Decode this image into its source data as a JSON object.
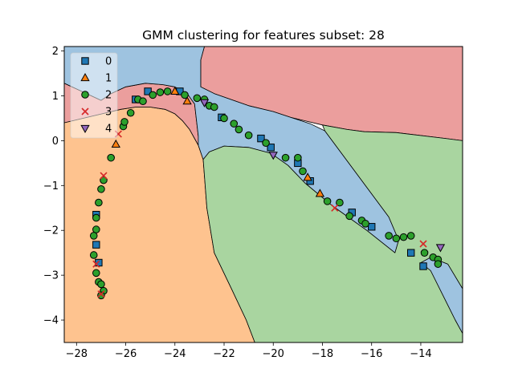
{
  "chart_data": {
    "type": "scatter",
    "title": "GMM clustering for features subset: 28",
    "xlabel": "",
    "ylabel": "",
    "xlim": [
      -28.5,
      -12.3
    ],
    "ylim": [
      -4.5,
      2.1
    ],
    "xticks": [
      -28,
      -26,
      -24,
      -22,
      -20,
      -18,
      -16,
      -14
    ],
    "yticks": [
      -4,
      -3,
      -2,
      -1,
      0,
      1,
      2
    ],
    "xtick_labels": [
      "−28",
      "−26",
      "−24",
      "−22",
      "−20",
      "−18",
      "−16",
      "−14"
    ],
    "ytick_labels": [
      "−4",
      "−3",
      "−2",
      "−1",
      "0",
      "1",
      "2"
    ],
    "grid": false,
    "legend_position": "top-left",
    "colors": {
      "0": "#1f77b4",
      "1": "#ff7f0e",
      "2": "#2ca02c",
      "3": "#d62728",
      "4": "#9467bd"
    },
    "region_colors": {
      "blue": "#9ec3e0",
      "orange": "#fec38f",
      "green": "#a9d5a0",
      "red": "#eb9e9d"
    },
    "series": [
      {
        "name": "0",
        "marker": "square",
        "points": [
          [
            -27.2,
            -1.65
          ],
          [
            -27.2,
            -2.32
          ],
          [
            -27.1,
            -2.72
          ],
          [
            -25.6,
            0.92
          ],
          [
            -25.1,
            1.1
          ],
          [
            -23.8,
            1.1
          ],
          [
            -22.1,
            0.52
          ],
          [
            -20.5,
            0.05
          ],
          [
            -20.1,
            -0.15
          ],
          [
            -19.0,
            -0.5
          ],
          [
            -18.5,
            -0.9
          ],
          [
            -16.8,
            -1.6
          ],
          [
            -16.0,
            -1.92
          ],
          [
            -14.4,
            -2.5
          ],
          [
            -13.9,
            -2.8
          ]
        ]
      },
      {
        "name": "1",
        "marker": "triangle-up",
        "points": [
          [
            -26.4,
            -0.08
          ],
          [
            -24.0,
            1.1
          ],
          [
            -23.5,
            0.88
          ],
          [
            -18.6,
            -0.82
          ],
          [
            -18.1,
            -1.18
          ]
        ]
      },
      {
        "name": "2",
        "marker": "circle",
        "points": [
          [
            -27.2,
            -1.72
          ],
          [
            -27.2,
            -1.98
          ],
          [
            -27.3,
            -2.12
          ],
          [
            -27.3,
            -2.55
          ],
          [
            -27.2,
            -2.95
          ],
          [
            -27.1,
            -3.15
          ],
          [
            -27.0,
            -3.2
          ],
          [
            -26.9,
            -3.35
          ],
          [
            -27.0,
            -3.45
          ],
          [
            -27.1,
            -1.38
          ],
          [
            -27.0,
            -1.08
          ],
          [
            -26.9,
            -0.88
          ],
          [
            -26.6,
            -0.38
          ],
          [
            -26.1,
            0.32
          ],
          [
            -26.05,
            0.42
          ],
          [
            -25.8,
            0.62
          ],
          [
            -25.5,
            0.92
          ],
          [
            -25.3,
            0.88
          ],
          [
            -24.9,
            1.02
          ],
          [
            -24.6,
            1.08
          ],
          [
            -24.3,
            1.1
          ],
          [
            -23.6,
            1.02
          ],
          [
            -23.1,
            0.95
          ],
          [
            -22.8,
            0.92
          ],
          [
            -22.6,
            0.78
          ],
          [
            -22.4,
            0.75
          ],
          [
            -22.0,
            0.5
          ],
          [
            -21.6,
            0.38
          ],
          [
            -21.4,
            0.25
          ],
          [
            -21.0,
            0.12
          ],
          [
            -20.3,
            -0.05
          ],
          [
            -19.5,
            -0.38
          ],
          [
            -19.0,
            -0.38
          ],
          [
            -18.8,
            -0.68
          ],
          [
            -17.8,
            -1.35
          ],
          [
            -17.3,
            -1.38
          ],
          [
            -16.9,
            -1.68
          ],
          [
            -16.4,
            -1.78
          ],
          [
            -16.25,
            -1.85
          ],
          [
            -15.3,
            -2.12
          ],
          [
            -15.0,
            -2.18
          ],
          [
            -14.7,
            -2.15
          ],
          [
            -14.4,
            -2.12
          ],
          [
            -13.85,
            -2.5
          ],
          [
            -13.5,
            -2.6
          ],
          [
            -13.3,
            -2.65
          ],
          [
            -13.3,
            -2.75
          ]
        ]
      },
      {
        "name": "3",
        "marker": "x",
        "points": [
          [
            -26.9,
            -0.78
          ],
          [
            -26.3,
            0.15
          ],
          [
            -27.0,
            -3.42
          ],
          [
            -27.2,
            -2.75
          ],
          [
            -17.5,
            -1.5
          ],
          [
            -13.9,
            -2.3
          ]
        ]
      },
      {
        "name": "4",
        "marker": "triangle-down",
        "points": [
          [
            -22.8,
            0.85
          ],
          [
            -20.0,
            -0.32
          ],
          [
            -13.2,
            -2.38
          ]
        ]
      }
    ],
    "regions": [
      {
        "color": "orange",
        "points": [
          [
            -28.5,
            0.4
          ],
          [
            -26.2,
            0.7
          ],
          [
            -25.6,
            0.75
          ],
          [
            -25.0,
            0.75
          ],
          [
            -24.4,
            0.7
          ],
          [
            -24.0,
            0.6
          ],
          [
            -23.7,
            0.45
          ],
          [
            -23.4,
            0.25
          ],
          [
            -23.05,
            -0.1
          ],
          [
            -22.85,
            -0.42
          ],
          [
            -22.7,
            -1.5
          ],
          [
            -22.4,
            -2.5
          ],
          [
            -21.7,
            -3.3
          ],
          [
            -21.1,
            -4.0
          ],
          [
            -20.75,
            -4.5
          ],
          [
            -28.5,
            -4.5
          ]
        ]
      },
      {
        "color": "red",
        "points": [
          [
            -28.5,
            0.4
          ],
          [
            -28.5,
            1.28
          ],
          [
            -27.0,
            0.9
          ],
          [
            -26.6,
            1.05
          ],
          [
            -26.0,
            1.2
          ],
          [
            -25.2,
            1.28
          ],
          [
            -24.5,
            1.25
          ],
          [
            -24.0,
            1.2
          ],
          [
            -23.5,
            1.05
          ],
          [
            -23.2,
            0.82
          ],
          [
            -23.05,
            0.1
          ],
          [
            -23.05,
            -0.1
          ],
          [
            -23.4,
            0.25
          ],
          [
            -23.7,
            0.45
          ],
          [
            -24.0,
            0.6
          ],
          [
            -24.4,
            0.7
          ],
          [
            -25.0,
            0.75
          ],
          [
            -25.6,
            0.75
          ],
          [
            -26.2,
            0.7
          ]
        ]
      },
      {
        "color": "red",
        "points": [
          [
            -22.95,
            1.2
          ],
          [
            -22.4,
            1.05
          ],
          [
            -21.0,
            0.78
          ],
          [
            -20.0,
            0.65
          ],
          [
            -19.3,
            0.52
          ],
          [
            -18.0,
            0.35
          ],
          [
            -17.0,
            0.25
          ],
          [
            -16.3,
            0.2
          ],
          [
            -15.0,
            0.18
          ],
          [
            -13.0,
            0.05
          ],
          [
            -12.3,
            0.0
          ],
          [
            -12.3,
            2.1
          ],
          [
            -22.8,
            2.1
          ],
          [
            -22.95,
            1.8
          ]
        ]
      },
      {
        "color": "blue",
        "points": [
          [
            -28.5,
            1.28
          ],
          [
            -28.5,
            2.1
          ],
          [
            -22.8,
            2.1
          ],
          [
            -22.95,
            1.8
          ],
          [
            -22.95,
            1.2
          ],
          [
            -22.4,
            1.05
          ],
          [
            -21.0,
            0.78
          ],
          [
            -20.0,
            0.65
          ],
          [
            -19.3,
            0.52
          ],
          [
            -18.5,
            0.38
          ],
          [
            -17.9,
            0.22
          ],
          [
            -15.3,
            -1.7
          ],
          [
            -14.9,
            -2.22
          ],
          [
            -15.05,
            -2.5
          ],
          [
            -16.2,
            -2.0
          ],
          [
            -17.6,
            -1.45
          ],
          [
            -18.7,
            -0.95
          ],
          [
            -19.4,
            -0.55
          ],
          [
            -20.1,
            -0.28
          ],
          [
            -21.0,
            -0.15
          ],
          [
            -22.0,
            -0.12
          ],
          [
            -22.6,
            -0.25
          ],
          [
            -22.85,
            -0.42
          ],
          [
            -23.05,
            -0.1
          ],
          [
            -23.05,
            0.1
          ],
          [
            -23.2,
            0.82
          ],
          [
            -23.5,
            1.05
          ],
          [
            -24.0,
            1.2
          ],
          [
            -24.5,
            1.25
          ],
          [
            -25.2,
            1.28
          ],
          [
            -26.0,
            1.2
          ],
          [
            -26.6,
            1.05
          ],
          [
            -27.0,
            0.9
          ]
        ]
      },
      {
        "color": "blue",
        "points": [
          [
            -14.0,
            -2.72
          ],
          [
            -13.6,
            -2.6
          ],
          [
            -12.9,
            -2.75
          ],
          [
            -12.3,
            -3.3
          ],
          [
            -12.3,
            -4.3
          ],
          [
            -12.6,
            -4.0
          ],
          [
            -13.6,
            -2.9
          ]
        ]
      },
      {
        "color": "green",
        "points": [
          [
            -22.85,
            -0.42
          ],
          [
            -22.6,
            -0.25
          ],
          [
            -22.0,
            -0.12
          ],
          [
            -21.0,
            -0.15
          ],
          [
            -20.1,
            -0.28
          ],
          [
            -19.4,
            -0.55
          ],
          [
            -18.7,
            -0.95
          ],
          [
            -17.6,
            -1.45
          ],
          [
            -16.2,
            -2.0
          ],
          [
            -15.05,
            -2.5
          ],
          [
            -14.9,
            -2.22
          ],
          [
            -15.3,
            -1.7
          ],
          [
            -17.9,
            0.22
          ],
          [
            -18.0,
            0.35
          ],
          [
            -17.0,
            0.25
          ],
          [
            -16.3,
            0.2
          ],
          [
            -15.0,
            0.18
          ],
          [
            -13.0,
            0.05
          ],
          [
            -12.3,
            0.0
          ],
          [
            -12.3,
            -3.3
          ],
          [
            -12.9,
            -2.75
          ],
          [
            -13.6,
            -2.6
          ],
          [
            -14.0,
            -2.72
          ],
          [
            -13.6,
            -2.9
          ],
          [
            -12.6,
            -4.0
          ],
          [
            -12.3,
            -4.3
          ],
          [
            -12.3,
            -4.5
          ],
          [
            -20.75,
            -4.5
          ],
          [
            -21.1,
            -4.0
          ],
          [
            -21.7,
            -3.3
          ],
          [
            -22.4,
            -2.5
          ],
          [
            -22.7,
            -1.5
          ]
        ]
      }
    ]
  }
}
